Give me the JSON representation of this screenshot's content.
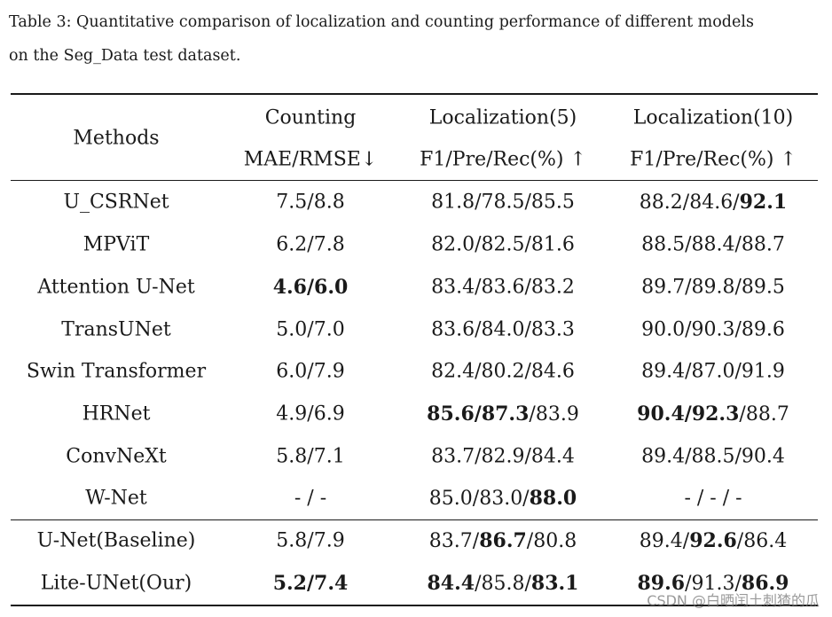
{
  "caption": {
    "line1": "Table 3: Quantitative comparison of localization and counting performance of different models",
    "line2": "on the Seg_Data test dataset."
  },
  "table": {
    "header": {
      "methods": "Methods",
      "counting": "Counting",
      "counting_metric": "MAE/RMSE↓",
      "loc5": "Localization(5)",
      "loc5_metric": "F1/Pre/Rec(%) ↑",
      "loc10": "Localization(10)",
      "loc10_metric": "F1/Pre/Rec(%) ↑"
    },
    "rows": [
      {
        "method": "U_CSRNet",
        "counting": "7.5/8.8",
        "loc5": "81.8/78.5/85.5",
        "loc10_a": "88.2/84.6/",
        "loc10_b": "92.1"
      },
      {
        "method": "MPViT",
        "counting": "6.2/7.8",
        "loc5": "82.0/82.5/81.6",
        "loc10": "88.5/88.4/88.7"
      },
      {
        "method": "Attention U-Net",
        "counting_bold": "4.6/6.0",
        "loc5": "83.4/83.6/83.2",
        "loc10": "89.7/89.8/89.5"
      },
      {
        "method": "TransUNet",
        "counting": "5.0/7.0",
        "loc5": "83.6/84.0/83.3",
        "loc10": "90.0/90.3/89.6"
      },
      {
        "method": "Swin Transformer",
        "counting": "6.0/7.9",
        "loc5": "82.4/80.2/84.6",
        "loc10": "89.4/87.0/91.9"
      },
      {
        "method": "HRNet",
        "counting": "4.9/6.9",
        "loc5_a": "85.6",
        "loc5_s1": "/",
        "loc5_b": "87.3",
        "loc5_c": "/83.9",
        "loc10_a": "90.4",
        "loc10_s1": "/",
        "loc10_b": "92.3",
        "loc10_c": "/88.7"
      },
      {
        "method": "ConvNeXt",
        "counting": "5.8/7.1",
        "loc5": "83.7/82.9/84.4",
        "loc10": "89.4/88.5/90.4"
      },
      {
        "method": "W-Net",
        "counting": "- / -",
        "loc5_a": "85.0/83.0/",
        "loc5_b": "88.0",
        "loc10": "- / - / -"
      },
      {
        "method": "U-Net(Baseline)",
        "counting": "5.8/7.9",
        "loc5_a": "83.7/",
        "loc5_b": "86.7",
        "loc5_c": "/80.8",
        "loc10_a": "89.4/",
        "loc10_b": "92.6",
        "loc10_c": "/86.4"
      },
      {
        "method": "Lite-UNet(Our)",
        "counting_bold": "5.2/7.4",
        "loc5_a": "84.4",
        "loc5_m": "/85.8/",
        "loc5_b": "83.1",
        "loc10_a": "89.6",
        "loc10_m": "/91.3/",
        "loc10_b": "86.9"
      }
    ]
  },
  "watermark": "CSDN @白晒闰土刺猹的瓜"
}
